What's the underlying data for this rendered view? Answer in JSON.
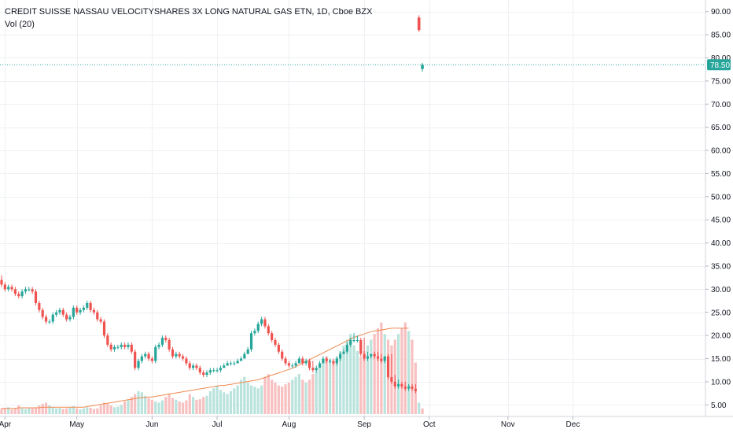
{
  "header": {
    "title": "CREDIT SUISSE NASSAU VELOCITYSHARES 3X LONG NATURAL GAS ETN, 1D, Cboe BZX",
    "vol_label": "Vol (20)"
  },
  "colors": {
    "up": "#26a69a",
    "down": "#ef5350",
    "vol_up": "#b9e3dc",
    "vol_down": "#f8c0c0",
    "vol_ma": "#ef8a50",
    "grid": "#eef0f3",
    "price_line": "#26a69a"
  },
  "chart_data": {
    "type": "candlestick",
    "y_ticks": [
      "5.00",
      "10.00",
      "15.00",
      "20.00",
      "25.00",
      "30.00",
      "35.00",
      "40.00",
      "45.00",
      "50.00",
      "55.00",
      "60.00",
      "65.00",
      "70.00",
      "75.00",
      "80.00",
      "85.00",
      "90.00"
    ],
    "y_range": [
      2.5,
      92.5
    ],
    "x_labels": [
      {
        "label": "Apr",
        "index": 1
      },
      {
        "label": "May",
        "index": 22
      },
      {
        "label": "Jun",
        "index": 44
      },
      {
        "label": "Jul",
        "index": 63
      },
      {
        "label": "Aug",
        "index": 84
      },
      {
        "label": "Sep",
        "index": 106
      },
      {
        "label": "Oct",
        "index": 125
      },
      {
        "label": "Nov",
        "index": 148
      },
      {
        "label": "Dec",
        "index": 167
      }
    ],
    "last_price": {
      "label": "78.50",
      "value": 78.5
    },
    "closes": [
      31,
      30,
      30.5,
      30,
      29,
      28.5,
      29.5,
      30,
      30,
      29.5,
      27,
      25.5,
      24,
      23,
      23,
      24.5,
      25,
      25.5,
      24.5,
      23.5,
      24,
      26,
      25,
      25.5,
      26,
      27,
      25.5,
      25,
      23.5,
      23,
      20,
      18,
      17,
      17.5,
      17.5,
      18,
      17.5,
      18,
      16.5,
      13,
      14.5,
      15.5,
      16,
      15,
      14.5,
      17.5,
      18,
      19.5,
      19,
      17,
      15.5,
      16,
      15.5,
      15,
      14,
      13,
      13.5,
      13,
      12,
      11.5,
      12,
      12.5,
      12.5,
      12.5,
      13,
      13.5,
      14,
      14,
      14,
      14.5,
      15,
      16,
      17,
      20.5,
      21,
      22.5,
      23.5,
      22,
      20.5,
      19,
      18,
      16.5,
      15,
      14,
      13.5,
      13.5,
      14,
      15,
      14,
      14.5,
      13,
      12.5,
      13,
      14,
      15,
      14.5,
      14.5,
      14,
      15,
      16,
      16.5,
      18,
      19,
      19,
      19,
      16,
      15,
      15.5,
      16,
      15.5,
      15,
      14.5,
      15.5,
      11,
      10,
      9,
      9.5,
      9,
      8.5,
      9,
      8.5,
      8
    ],
    "opens": [
      32,
      31,
      30,
      30.5,
      30,
      29,
      28.5,
      29.5,
      30,
      30,
      29.5,
      27,
      25.5,
      24,
      23,
      23,
      24.5,
      25,
      25.5,
      24.5,
      23.5,
      24,
      26,
      25,
      25.5,
      26,
      27,
      25.5,
      25,
      23.5,
      23,
      20,
      18,
      17,
      17.5,
      17.5,
      18,
      17.5,
      18,
      16.5,
      13,
      14.5,
      15.5,
      16,
      15,
      14.5,
      17.5,
      18,
      19.5,
      19,
      17,
      15.5,
      16,
      15.5,
      15,
      14,
      13,
      13.5,
      13,
      12,
      11.5,
      12,
      12.5,
      12.5,
      12.5,
      13,
      13.5,
      14,
      14,
      14,
      14.5,
      15,
      16,
      17,
      20.5,
      21,
      22.5,
      23.5,
      22,
      20.5,
      19,
      18,
      16.5,
      15,
      14,
      13.5,
      13.5,
      14,
      15,
      14,
      14.5,
      13,
      12.5,
      13,
      14,
      15,
      14.5,
      14.5,
      14,
      15,
      16,
      16.5,
      18,
      19,
      19,
      19,
      16,
      15,
      15.5,
      16,
      15.5,
      15,
      14.5,
      15.5,
      11,
      10,
      9,
      9.5,
      9,
      8.5,
      9,
      8.5
    ],
    "highs": [
      33,
      31.5,
      31,
      31,
      30.5,
      29.5,
      30,
      30.5,
      30.5,
      30.5,
      30,
      27.5,
      26,
      24.5,
      23.5,
      25,
      25.5,
      26,
      26,
      25,
      24.5,
      26.5,
      26.5,
      26,
      26.5,
      27.5,
      27.5,
      26,
      25.5,
      24,
      23.5,
      20.5,
      18.5,
      18,
      18,
      18.5,
      18.5,
      18.5,
      18.5,
      17,
      15,
      16,
      16.5,
      16.5,
      15.5,
      18,
      18.5,
      20,
      20,
      19.5,
      17.5,
      16.5,
      16.5,
      16,
      15.5,
      14.5,
      14,
      14,
      13.5,
      12.5,
      12.5,
      13,
      13,
      13,
      13.5,
      14,
      14.5,
      14.5,
      14.5,
      15,
      15.5,
      16.5,
      17.5,
      21,
      21.5,
      23,
      24,
      24,
      22.5,
      21,
      19.5,
      18.5,
      17,
      15.5,
      14.5,
      14,
      14.5,
      15.5,
      15.5,
      15,
      15,
      14.5,
      13.5,
      14.5,
      15.5,
      15.5,
      15,
      15,
      15.5,
      16.5,
      17,
      18.5,
      19.5,
      20.5,
      20,
      19.5,
      19.5,
      16.5,
      16,
      16.5,
      16.5,
      16,
      15.5,
      16,
      16,
      11.5,
      10.5,
      10,
      10,
      9.5,
      9.5,
      9.5,
      9
    ],
    "lows": [
      30.5,
      29.5,
      29.5,
      29.5,
      28.5,
      28,
      28,
      29,
      29.5,
      29,
      26.5,
      25,
      23.5,
      22.5,
      22.5,
      22.5,
      24,
      24.5,
      24,
      23,
      23,
      23.5,
      24.5,
      24.5,
      25,
      25.5,
      25,
      24.5,
      23,
      22.5,
      19.5,
      17.5,
      16.5,
      16.5,
      17,
      17,
      17,
      17,
      16,
      12.5,
      12.5,
      14,
      15,
      14.5,
      14,
      14,
      17,
      17.5,
      18.5,
      16.5,
      15,
      15,
      15,
      14.5,
      13.5,
      12.5,
      12.5,
      12.5,
      11.5,
      11,
      11,
      11.5,
      12,
      12,
      12,
      13,
      13.5,
      13.5,
      13.5,
      14,
      14.5,
      15,
      16,
      16.5,
      20,
      20.5,
      22,
      21.5,
      20,
      18.5,
      17.5,
      16,
      14.5,
      13.5,
      13,
      13,
      13,
      14,
      13.5,
      13.5,
      12.5,
      12,
      12,
      13,
      14,
      14,
      14,
      13.5,
      13.5,
      14.5,
      16,
      16,
      17.5,
      18.5,
      18.5,
      15.5,
      14.5,
      14.5,
      15,
      15,
      14.5,
      14,
      14,
      10.5,
      9.5,
      8.5,
      8.5,
      8.5,
      8,
      8,
      8,
      7.5
    ],
    "last_candles": [
      {
        "open": 88.7,
        "high": 89.2,
        "low": 85.6,
        "close": 86.0
      },
      {
        "open": 77.6,
        "high": 78.9,
        "low": 77.0,
        "close": 78.5
      }
    ],
    "volumes": [
      1,
      1,
      1.2,
      0.8,
      1,
      1.5,
      1,
      0.9,
      1.1,
      1,
      1.2,
      1.5,
      1.8,
      2,
      1.5,
      1.2,
      1,
      1.1,
      0.9,
      1,
      1.2,
      1.4,
      1,
      0.8,
      1,
      1.2,
      1.1,
      0.9,
      1,
      1.5,
      2,
      1.8,
      1.5,
      1.2,
      1.3,
      1.6,
      2.2,
      2.5,
      3,
      3.5,
      4,
      3.8,
      3.2,
      2.8,
      2.5,
      2.2,
      2,
      2.4,
      3,
      3.5,
      2.8,
      2.5,
      2.2,
      2,
      2.4,
      3.5,
      3,
      2.5,
      2.6,
      3,
      3.2,
      4,
      4.5,
      5,
      4.2,
      3.8,
      3.5,
      4,
      4.5,
      5,
      6,
      6.5,
      5.5,
      5,
      4.8,
      4.5,
      5,
      6.5,
      7,
      6,
      5.5,
      5,
      4.8,
      5.2,
      5.5,
      6,
      6.5,
      7,
      6,
      5.5,
      6,
      7,
      7.5,
      8,
      9,
      10,
      9.5,
      9,
      10,
      11,
      12,
      13,
      14,
      12,
      11,
      10,
      11,
      12,
      13,
      14,
      15,
      16,
      14,
      13,
      12,
      13,
      14,
      15,
      16,
      14.5,
      13
    ],
    "vol_ma": [
      1,
      1,
      1,
      1,
      1,
      1.1,
      1.1,
      1.1,
      1.1,
      1.1,
      1.1,
      1.1,
      1.2,
      1.2,
      1.2,
      1.2,
      1.2,
      1.2,
      1.2,
      1.2,
      1.2,
      1.2,
      1.2,
      1.2,
      1.2,
      1.3,
      1.4,
      1.5,
      1.6,
      1.7,
      1.8,
      1.9,
      2,
      2.1,
      2.2,
      2.3,
      2.4,
      2.5,
      2.6,
      2.7,
      2.8,
      2.9,
      2.9,
      3,
      3,
      3.1,
      3.2,
      3.3,
      3.4,
      3.5,
      3.6,
      3.7,
      3.8,
      3.9,
      4,
      4.1,
      4.2,
      4.3,
      4.4,
      4.5,
      4.6,
      4.7,
      4.8,
      4.9,
      5,
      5,
      5.1,
      5.2,
      5.3,
      5.4,
      5.5,
      5.6,
      5.7,
      5.8,
      5.9,
      6,
      6.2,
      6.4,
      6.6,
      6.8,
      7,
      7.2,
      7.4,
      7.6,
      7.8,
      8,
      8.3,
      8.6,
      8.9,
      9.2,
      9.5,
      9.8,
      10.1,
      10.4,
      10.7,
      11,
      11.3,
      11.6,
      11.9,
      12.2,
      12.5,
      12.8,
      13.1,
      13.4,
      13.6,
      13.8,
      14,
      14.2,
      14.4,
      14.5,
      14.6,
      14.7,
      14.8,
      14.9,
      15,
      15,
      15,
      15,
      15,
      15
    ]
  }
}
